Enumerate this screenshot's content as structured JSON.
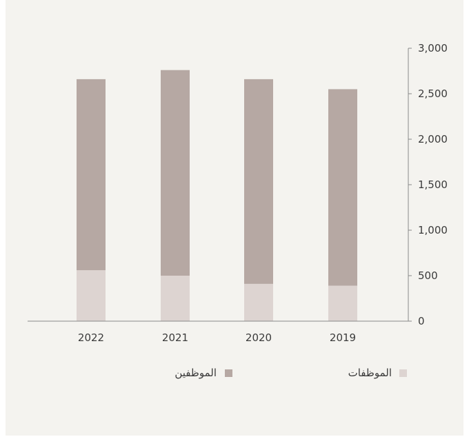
{
  "chart_data": {
    "type": "bar",
    "stacked": true,
    "categories": [
      "2022",
      "2021",
      "2020",
      "2019"
    ],
    "series": [
      {
        "name": "الموظفات",
        "values": [
          560,
          500,
          410,
          390
        ],
        "color": "#ddd4d1"
      },
      {
        "name": "الموظفين",
        "values": [
          2100,
          2260,
          2250,
          2160
        ],
        "color": "#b6a8a3"
      }
    ],
    "yticks": [
      "0",
      "500",
      "1,000",
      "1,500",
      "2,000",
      "2,500",
      "3,000"
    ],
    "ylim": [
      0,
      3000
    ],
    "axis_side": "right",
    "legend_position": "bottom",
    "grid": false
  }
}
